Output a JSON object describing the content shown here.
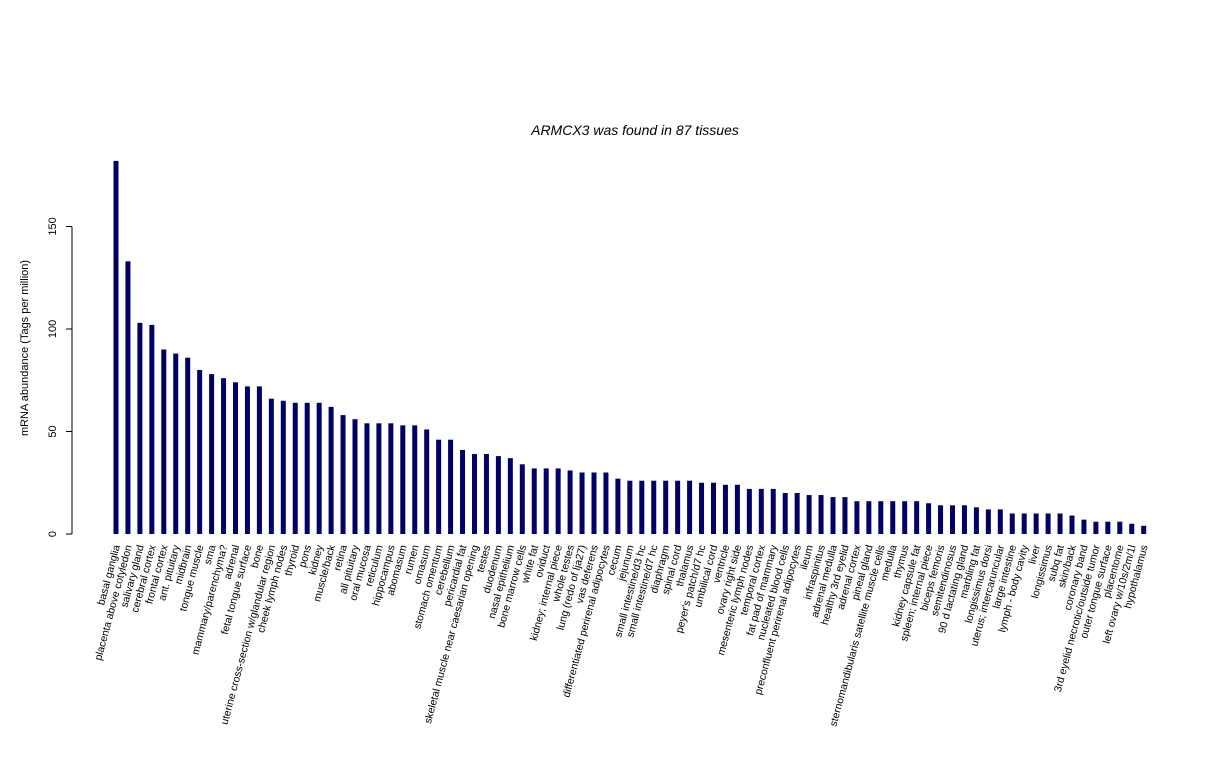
{
  "chart_data": {
    "type": "bar",
    "title": "ARMCX3  was found in  87  tissues",
    "xlabel": "",
    "ylabel": "mRNA abundance (Tags per million)",
    "ylim": [
      0,
      185
    ],
    "yticks": [
      0,
      50,
      100,
      150
    ],
    "grid": false,
    "bar_color": "#000066",
    "categories": [
      "basal ganglia",
      "placenta above cotyledon",
      "salivary gland",
      "cerebral cortex",
      "frontal cortex",
      "ant. pituitary",
      "midbrain",
      "tongue muscle",
      "sma",
      "mammary/parenchyma?",
      "adrenal",
      "fetal tongue surface",
      "bone",
      "uterine cross-section w/glandular region",
      "cheek lymph nodes",
      "thyroid",
      "pons",
      "kidney",
      "muscle/back",
      "retina",
      "all pituitary",
      "oral mucosa",
      "reticulum",
      "hippocampus",
      "abomasum",
      "rumen",
      "omasum",
      "stomach omentum",
      "cerebellum",
      "pericardial fat",
      "skeletal muscle near caesarian opening",
      "testes",
      "duodenum",
      "nasal epithelium",
      "bone marrow cells",
      "white fat",
      "oviduct",
      "kidney; internal piece",
      "whole testes",
      "lung (redo of lja27)",
      "vas deferens",
      "differentiated perirenal adipocytes",
      "cecum",
      "jejunum",
      "small intestine/d3 hc",
      "small intestine/d7 hc",
      "diaphragm",
      "spinal cord",
      "thalamus",
      "peyer's patch/d7 hc",
      "umbilical cord",
      "ventricle",
      "ovary right side",
      "mesenteric lymph nodes",
      "temporal cortex",
      "fat pad of mammary",
      "nucleated blood cells",
      "preconfluent perirenal adipocytes",
      "ileum",
      "infraspinitus",
      "adrenal medulla",
      "healthy 3rd eyelid",
      "adrenal cortex",
      "pineal gland",
      "sternomandibularis satellite muscle cells",
      "medulla",
      "thymus",
      "kidney capsule fat",
      "spleen; internal piece",
      "biceps femoris",
      "semitendinosus",
      "90 d lactating gland",
      "marbling fat",
      "longissimus dorsi",
      "uterus; intercaruncular",
      "large intestine",
      "lymph - body cavity",
      "liver",
      "longissimus",
      "subq fat",
      "skin/back",
      "coronary band",
      "3rd eyelid necrotic/outside tumor",
      "outer tongue surface",
      "placentome",
      "left ovary w/10s/2m/1l",
      "hypothalamus"
    ],
    "values": [
      182,
      133,
      103,
      102,
      90,
      88,
      86,
      80,
      78,
      76,
      74,
      72,
      72,
      66,
      65,
      64,
      64,
      64,
      62,
      58,
      56,
      54,
      54,
      54,
      53,
      53,
      51,
      46,
      46,
      41,
      39,
      39,
      38,
      37,
      34,
      32,
      32,
      32,
      31,
      30,
      30,
      30,
      27,
      26,
      26,
      26,
      26,
      26,
      26,
      25,
      25,
      24,
      24,
      22,
      22,
      22,
      20,
      20,
      19,
      19,
      18,
      18,
      16,
      16,
      16,
      16,
      16,
      16,
      15,
      14,
      14,
      14,
      13,
      12,
      12,
      10,
      10,
      10,
      10,
      10,
      9,
      7,
      6,
      6,
      6,
      5,
      4
    ]
  }
}
